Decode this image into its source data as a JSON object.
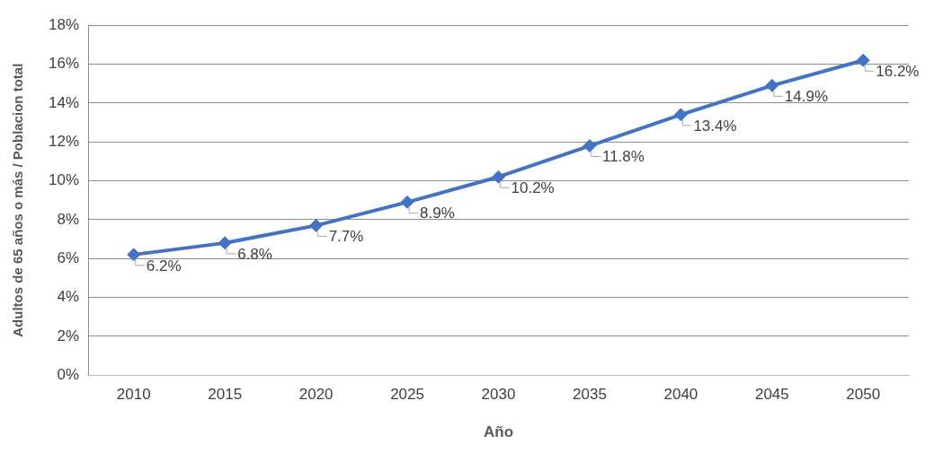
{
  "chart_data": {
    "type": "line",
    "xlabel": "Año",
    "ylabel": "Adultos de 65 años o más / Poblacion total",
    "categories": [
      "2010",
      "2015",
      "2020",
      "2025",
      "2030",
      "2035",
      "2040",
      "2045",
      "2050"
    ],
    "series": [
      {
        "color": "#4472c4",
        "values": [
          6.2,
          6.8,
          7.7,
          8.9,
          10.2,
          11.8,
          13.4,
          14.9,
          16.2
        ],
        "value_labels": [
          "6.2%",
          "6.8%",
          "7.7%",
          "8.9%",
          "10.2%",
          "11.8%",
          "13.4%",
          "14.9%",
          "16.2%"
        ]
      }
    ],
    "ylim": [
      0,
      18
    ],
    "yticks": [
      {
        "value": 0,
        "label": "0%"
      },
      {
        "value": 2,
        "label": "2%"
      },
      {
        "value": 4,
        "label": "4%"
      },
      {
        "value": 6,
        "label": "6%"
      },
      {
        "value": 8,
        "label": "8%"
      },
      {
        "value": 10,
        "label": "10%"
      },
      {
        "value": 12,
        "label": "12%"
      },
      {
        "value": 14,
        "label": "14%"
      },
      {
        "value": 16,
        "label": "16%"
      },
      {
        "value": 18,
        "label": "18%"
      }
    ],
    "grid": "y",
    "legend": false,
    "marker": "diamond",
    "line_style": "solid"
  }
}
